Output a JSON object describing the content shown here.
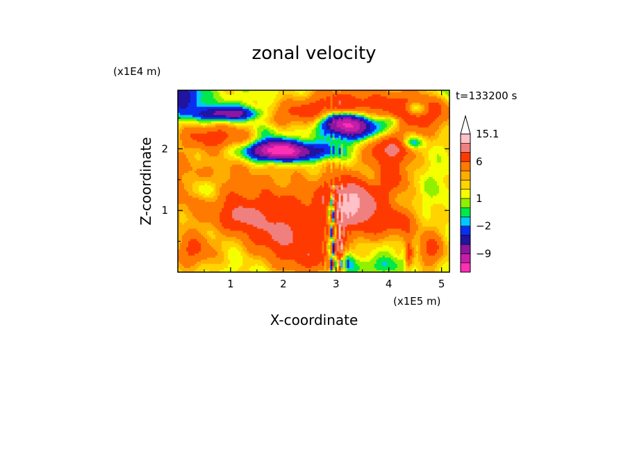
{
  "chart_data": {
    "type": "heatmap",
    "title": "zonal velocity",
    "xlabel": "X-coordinate",
    "ylabel": "Z-coordinate",
    "x_scale_label": "(x1E5 m)",
    "y_scale_label": "(x1E4 m)",
    "time_label": "t=133200 s",
    "xlim": [
      0,
      5.15
    ],
    "ylim": [
      0,
      2.95
    ],
    "x_ticks": [
      "1",
      "2",
      "3",
      "4",
      "5"
    ],
    "x_tick_values": [
      1,
      2,
      3,
      4,
      5
    ],
    "y_ticks": [
      "1",
      "2"
    ],
    "y_tick_values": [
      1,
      2
    ],
    "colorbar": {
      "levels": [
        -15,
        -12,
        -9,
        -6,
        -4,
        -2,
        -1,
        0,
        1,
        2,
        3,
        4,
        6,
        9,
        12,
        15.1
      ],
      "colors": [
        "#ff2fb4",
        "#c41ea8",
        "#8c16a0",
        "#2014a0",
        "#0a2ef0",
        "#00c8ff",
        "#00e84a",
        "#90f000",
        "#f5ff00",
        "#ffd400",
        "#ffae00",
        "#ff7a00",
        "#ff3a00",
        "#f08080",
        "#ffc0c8"
      ],
      "extend_max": true,
      "labels": [
        "15.1",
        "6",
        "1",
        "−2",
        "−9"
      ],
      "label_values": [
        15.1,
        6,
        1,
        -2,
        -9
      ]
    },
    "features": [
      {
        "x": 1.0,
        "z": 1.45,
        "u": 3,
        "sx": 2.0,
        "sz": 0.5
      },
      {
        "x": 2.2,
        "z": 1.0,
        "u": 3,
        "sx": 1.2,
        "sz": 0.3
      },
      {
        "x": 2.3,
        "z": 0.55,
        "u": 3,
        "sx": 0.9,
        "sz": 0.25
      },
      {
        "x": 2.1,
        "z": 1.95,
        "u": -11,
        "sx": 0.6,
        "sz": 0.11
      },
      {
        "x": 1.85,
        "z": 2.0,
        "u": -8,
        "sx": 0.3,
        "sz": 0.12
      },
      {
        "x": 3.35,
        "z": 2.35,
        "u": -10,
        "sx": 0.42,
        "sz": 0.13
      },
      {
        "x": 3.1,
        "z": 2.45,
        "u": -7,
        "sx": 0.25,
        "sz": 0.1
      },
      {
        "x": 0.95,
        "z": 2.57,
        "u": -7,
        "sx": 0.42,
        "sz": 0.07
      },
      {
        "x": 0.95,
        "z": 2.57,
        "u": -3,
        "sx": 0.55,
        "sz": 0.13
      },
      {
        "x": 4.5,
        "z": 2.65,
        "u": -6,
        "sx": 0.16,
        "sz": 0.08
      },
      {
        "x": 4.45,
        "z": 2.1,
        "u": -5,
        "sx": 0.15,
        "sz": 0.07
      },
      {
        "x": 4.1,
        "z": 2.45,
        "u": -3,
        "sx": 0.12,
        "sz": 0.06
      },
      {
        "x": 0.1,
        "z": 2.85,
        "u": -7,
        "sx": 0.25,
        "sz": 0.18
      },
      {
        "x": 5.1,
        "z": 2.9,
        "u": -2,
        "sx": 0.4,
        "sz": 0.1
      },
      {
        "x": 2.3,
        "z": 2.75,
        "u": -1,
        "sx": 0.5,
        "sz": 0.15
      },
      {
        "x": 0.55,
        "z": 1.35,
        "u": -4,
        "sx": 0.15,
        "sz": 0.12
      },
      {
        "x": 4.5,
        "z": 2.6,
        "u": 7,
        "sx": 0.5,
        "sz": 0.25
      },
      {
        "x": 2.2,
        "z": 2.58,
        "u": 5,
        "sx": 0.5,
        "sz": 0.15
      },
      {
        "x": 3.15,
        "z": 2.75,
        "u": 6,
        "sx": 0.55,
        "sz": 0.17
      },
      {
        "x": 3.15,
        "z": 1.25,
        "u": 6,
        "sx": 0.3,
        "sz": 0.3
      },
      {
        "x": 3.5,
        "z": 1.05,
        "u": 5,
        "sx": 0.3,
        "sz": 0.3
      },
      {
        "x": 4.05,
        "z": 1.55,
        "u": 6,
        "sx": 0.28,
        "sz": 0.22
      },
      {
        "x": 4.0,
        "z": 2.0,
        "u": 7,
        "sx": 0.3,
        "sz": 0.15
      },
      {
        "x": 0.7,
        "z": 2.2,
        "u": 5,
        "sx": 0.45,
        "sz": 0.15
      },
      {
        "x": 4.8,
        "z": 0.35,
        "u": 5,
        "sx": 0.2,
        "sz": 0.22
      },
      {
        "x": 2.5,
        "z": 0.2,
        "u": 5,
        "sx": 0.45,
        "sz": 0.18
      },
      {
        "x": 0.3,
        "z": 0.35,
        "u": 5,
        "sx": 0.3,
        "sz": 0.2
      },
      {
        "x": 1.85,
        "z": 0.6,
        "u": 4,
        "sx": 0.35,
        "sz": 0.2
      },
      {
        "x": 4.1,
        "z": 0.8,
        "u": 5,
        "sx": 0.3,
        "sz": 0.18
      },
      {
        "x": 1.2,
        "z": 0.9,
        "u": 5,
        "sx": 0.25,
        "sz": 0.15
      },
      {
        "x": 3.15,
        "z": 2.1,
        "u": -1,
        "sx": 0.25,
        "sz": 0.4
      },
      {
        "x": 2.6,
        "z": 1.5,
        "u": -1,
        "sx": 1.3,
        "sz": 0.18
      },
      {
        "x": 0.8,
        "z": 0.5,
        "u": -1,
        "sx": 0.65,
        "sz": 0.2
      },
      {
        "x": 3.8,
        "z": 0.55,
        "u": -1,
        "sx": 0.45,
        "sz": 0.3
      },
      {
        "x": 4.6,
        "z": 1.35,
        "u": -1,
        "sx": 0.4,
        "sz": 0.25
      },
      {
        "x": 3.7,
        "z": 0.1,
        "u": -2,
        "sx": 0.6,
        "sz": 0.1
      },
      {
        "x": 3.7,
        "z": 1.55,
        "u": -2,
        "sx": 0.3,
        "sz": 0.15
      },
      {
        "x": 1.7,
        "z": 2.3,
        "u": -2,
        "sx": 0.2,
        "sz": 0.08
      },
      {
        "x": 2.95,
        "z": 0.5,
        "u": -7,
        "sx": 0.06,
        "sz": 0.5
      },
      {
        "x": 2.9,
        "z": 1.05,
        "u": -6,
        "sx": 0.06,
        "sz": 0.12
      },
      {
        "x": 3.2,
        "z": 0.2,
        "u": -4,
        "sx": 0.1,
        "sz": 0.12
      },
      {
        "x": 3.05,
        "z": 0.5,
        "u": 6,
        "sx": 0.07,
        "sz": 0.4
      },
      {
        "x": 4.35,
        "z": 0.3,
        "u": 7,
        "sx": 0.07,
        "sz": 0.2
      },
      {
        "x": 4.3,
        "z": 0.3,
        "u": -5,
        "sx": 0.05,
        "sz": 0.15
      }
    ]
  }
}
